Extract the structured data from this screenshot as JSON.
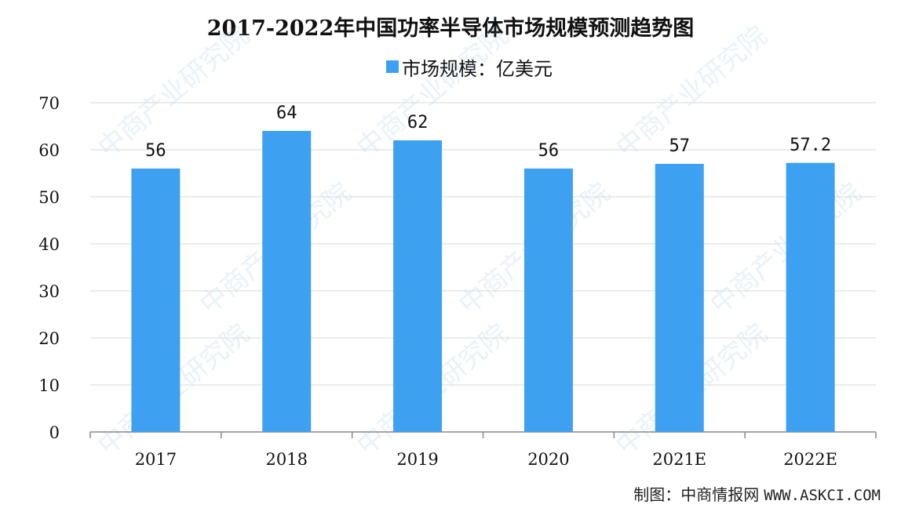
{
  "chart_data": {
    "type": "bar",
    "title": "2017-2022年中国功率半导体市场规模预测趋势图",
    "categories": [
      "2017",
      "2018",
      "2019",
      "2020",
      "2021E",
      "2022E"
    ],
    "series": [
      {
        "name": "市场规模：亿美元",
        "values": [
          56,
          64,
          62,
          56,
          57,
          57.2
        ],
        "labels": [
          "56",
          "64",
          "62",
          "56",
          "57",
          "57.2"
        ]
      }
    ],
    "xlabel": "",
    "ylabel": "",
    "ylim": [
      0,
      70
    ],
    "yticks": [
      "0",
      "10",
      "20",
      "30",
      "40",
      "50",
      "60",
      "70"
    ],
    "grid": true,
    "legend_position": "top-center"
  },
  "colors": {
    "bar": "#3ea0f0",
    "grid": "#d9d9d9",
    "axis": "#888888",
    "text": "#111111"
  },
  "source": {
    "label": "制图：中商情报网",
    "url_text": "WWW.ASKCI.COM"
  },
  "watermark_text": "中商产业研究院"
}
